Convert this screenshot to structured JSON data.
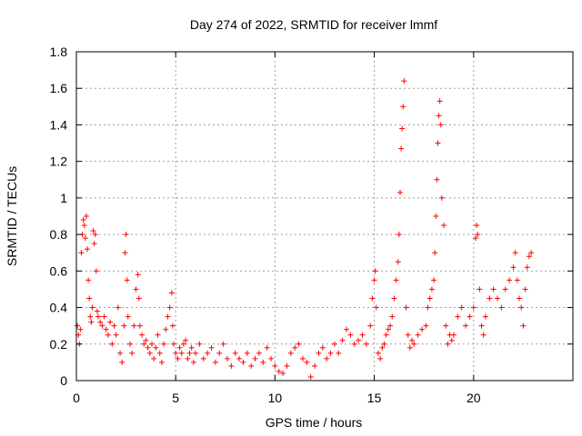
{
  "chart_data": {
    "type": "scatter",
    "title": "Day 274 of 2022, SRMTID for receiver lmmf",
    "xlabel": "GPS time / hours",
    "ylabel": "SRMTID / TECUs",
    "xlim": [
      0,
      25
    ],
    "ylim": [
      0,
      1.8
    ],
    "xticks": [
      0,
      5,
      10,
      15,
      20
    ],
    "xtick_labels": [
      "0",
      "5",
      "10",
      "15",
      "20"
    ],
    "yticks": [
      0,
      0.2,
      0.4,
      0.6,
      0.8,
      1,
      1.2,
      1.4,
      1.6,
      1.8
    ],
    "ytick_labels": [
      "0",
      "0.2",
      "0.4",
      "0.6",
      "0.8",
      "1",
      "1.2",
      "1.4",
      "1.6",
      "1.8"
    ],
    "grid": true,
    "marker": "+",
    "color": "#ff0000",
    "series": [
      {
        "name": "SRMTID",
        "points": [
          [
            0.05,
            0.3
          ],
          [
            0.1,
            0.25
          ],
          [
            0.15,
            0.2
          ],
          [
            0.2,
            0.28
          ],
          [
            0.25,
            0.7
          ],
          [
            0.3,
            0.8
          ],
          [
            0.35,
            0.88
          ],
          [
            0.4,
            0.85
          ],
          [
            0.45,
            0.78
          ],
          [
            0.5,
            0.9
          ],
          [
            0.55,
            0.72
          ],
          [
            0.6,
            0.55
          ],
          [
            0.65,
            0.45
          ],
          [
            0.7,
            0.35
          ],
          [
            0.75,
            0.32
          ],
          [
            0.8,
            0.4
          ],
          [
            0.85,
            0.82
          ],
          [
            0.9,
            0.75
          ],
          [
            0.95,
            0.8
          ],
          [
            1.0,
            0.6
          ],
          [
            1.05,
            0.38
          ],
          [
            1.1,
            0.35
          ],
          [
            1.2,
            0.32
          ],
          [
            1.3,
            0.3
          ],
          [
            1.4,
            0.35
          ],
          [
            1.5,
            0.28
          ],
          [
            1.6,
            0.25
          ],
          [
            1.7,
            0.32
          ],
          [
            1.8,
            0.2
          ],
          [
            1.9,
            0.3
          ],
          [
            2.0,
            0.25
          ],
          [
            2.1,
            0.4
          ],
          [
            2.2,
            0.15
          ],
          [
            2.3,
            0.1
          ],
          [
            2.4,
            0.3
          ],
          [
            2.45,
            0.7
          ],
          [
            2.5,
            0.8
          ],
          [
            2.55,
            0.55
          ],
          [
            2.6,
            0.35
          ],
          [
            2.7,
            0.2
          ],
          [
            2.8,
            0.15
          ],
          [
            2.9,
            0.3
          ],
          [
            3.0,
            0.5
          ],
          [
            3.1,
            0.58
          ],
          [
            3.15,
            0.45
          ],
          [
            3.2,
            0.3
          ],
          [
            3.3,
            0.25
          ],
          [
            3.4,
            0.2
          ],
          [
            3.5,
            0.22
          ],
          [
            3.6,
            0.18
          ],
          [
            3.7,
            0.15
          ],
          [
            3.8,
            0.2
          ],
          [
            3.9,
            0.12
          ],
          [
            4.0,
            0.18
          ],
          [
            4.1,
            0.25
          ],
          [
            4.2,
            0.15
          ],
          [
            4.3,
            0.1
          ],
          [
            4.4,
            0.2
          ],
          [
            4.5,
            0.28
          ],
          [
            4.6,
            0.35
          ],
          [
            4.7,
            0.4
          ],
          [
            4.8,
            0.48
          ],
          [
            4.85,
            0.3
          ],
          [
            4.9,
            0.2
          ],
          [
            5.0,
            0.15
          ],
          [
            5.1,
            0.12
          ],
          [
            5.2,
            0.18
          ],
          [
            5.3,
            0.15
          ],
          [
            5.4,
            0.2
          ],
          [
            5.5,
            0.22
          ],
          [
            5.6,
            0.12
          ],
          [
            5.7,
            0.15
          ],
          [
            5.8,
            0.18
          ],
          [
            5.9,
            0.1
          ],
          [
            6.0,
            0.15
          ],
          [
            6.2,
            0.2
          ],
          [
            6.4,
            0.12
          ],
          [
            6.6,
            0.15
          ],
          [
            6.8,
            0.18
          ],
          [
            7.0,
            0.1
          ],
          [
            7.2,
            0.15
          ],
          [
            7.4,
            0.2
          ],
          [
            7.6,
            0.12
          ],
          [
            7.8,
            0.08
          ],
          [
            8.0,
            0.15
          ],
          [
            8.2,
            0.12
          ],
          [
            8.4,
            0.1
          ],
          [
            8.6,
            0.15
          ],
          [
            8.8,
            0.08
          ],
          [
            9.0,
            0.12
          ],
          [
            9.2,
            0.15
          ],
          [
            9.4,
            0.1
          ],
          [
            9.6,
            0.18
          ],
          [
            9.8,
            0.12
          ],
          [
            10.0,
            0.08
          ],
          [
            10.2,
            0.05
          ],
          [
            10.4,
            0.04
          ],
          [
            10.6,
            0.08
          ],
          [
            10.8,
            0.15
          ],
          [
            11.0,
            0.18
          ],
          [
            11.2,
            0.2
          ],
          [
            11.4,
            0.12
          ],
          [
            11.6,
            0.1
          ],
          [
            11.8,
            0.02
          ],
          [
            12.0,
            0.08
          ],
          [
            12.2,
            0.15
          ],
          [
            12.4,
            0.18
          ],
          [
            12.6,
            0.12
          ],
          [
            12.8,
            0.15
          ],
          [
            13.0,
            0.2
          ],
          [
            13.2,
            0.15
          ],
          [
            13.4,
            0.22
          ],
          [
            13.6,
            0.28
          ],
          [
            13.8,
            0.25
          ],
          [
            14.0,
            0.2
          ],
          [
            14.2,
            0.22
          ],
          [
            14.4,
            0.25
          ],
          [
            14.6,
            0.2
          ],
          [
            14.8,
            0.3
          ],
          [
            14.9,
            0.45
          ],
          [
            15.0,
            0.55
          ],
          [
            15.05,
            0.6
          ],
          [
            15.1,
            0.4
          ],
          [
            15.2,
            0.15
          ],
          [
            15.3,
            0.12
          ],
          [
            15.4,
            0.18
          ],
          [
            15.5,
            0.2
          ],
          [
            15.6,
            0.25
          ],
          [
            15.7,
            0.28
          ],
          [
            15.8,
            0.3
          ],
          [
            15.9,
            0.35
          ],
          [
            16.0,
            0.45
          ],
          [
            16.1,
            0.55
          ],
          [
            16.2,
            0.65
          ],
          [
            16.25,
            0.8
          ],
          [
            16.3,
            1.03
          ],
          [
            16.35,
            1.27
          ],
          [
            16.4,
            1.38
          ],
          [
            16.45,
            1.5
          ],
          [
            16.5,
            1.64
          ],
          [
            16.6,
            0.4
          ],
          [
            16.7,
            0.25
          ],
          [
            16.8,
            0.18
          ],
          [
            16.9,
            0.22
          ],
          [
            17.0,
            0.2
          ],
          [
            17.2,
            0.25
          ],
          [
            17.4,
            0.28
          ],
          [
            17.6,
            0.3
          ],
          [
            17.7,
            0.4
          ],
          [
            17.8,
            0.45
          ],
          [
            17.9,
            0.5
          ],
          [
            18.0,
            0.55
          ],
          [
            18.05,
            0.7
          ],
          [
            18.1,
            0.9
          ],
          [
            18.15,
            1.1
          ],
          [
            18.2,
            1.3
          ],
          [
            18.25,
            1.45
          ],
          [
            18.3,
            1.53
          ],
          [
            18.35,
            1.4
          ],
          [
            18.4,
            1.0
          ],
          [
            18.5,
            0.85
          ],
          [
            18.6,
            0.3
          ],
          [
            18.7,
            0.2
          ],
          [
            18.8,
            0.25
          ],
          [
            18.9,
            0.22
          ],
          [
            19.0,
            0.25
          ],
          [
            19.2,
            0.35
          ],
          [
            19.4,
            0.4
          ],
          [
            19.6,
            0.3
          ],
          [
            19.8,
            0.35
          ],
          [
            20.0,
            0.4
          ],
          [
            20.1,
            0.78
          ],
          [
            20.15,
            0.85
          ],
          [
            20.2,
            0.8
          ],
          [
            20.3,
            0.5
          ],
          [
            20.4,
            0.3
          ],
          [
            20.5,
            0.25
          ],
          [
            20.6,
            0.35
          ],
          [
            20.8,
            0.45
          ],
          [
            21.0,
            0.5
          ],
          [
            21.2,
            0.45
          ],
          [
            21.4,
            0.4
          ],
          [
            21.6,
            0.5
          ],
          [
            21.8,
            0.55
          ],
          [
            22.0,
            0.62
          ],
          [
            22.1,
            0.7
          ],
          [
            22.2,
            0.55
          ],
          [
            22.3,
            0.45
          ],
          [
            22.4,
            0.4
          ],
          [
            22.5,
            0.3
          ],
          [
            22.6,
            0.5
          ],
          [
            22.7,
            0.62
          ],
          [
            22.8,
            0.68
          ],
          [
            22.9,
            0.7
          ]
        ]
      }
    ]
  }
}
